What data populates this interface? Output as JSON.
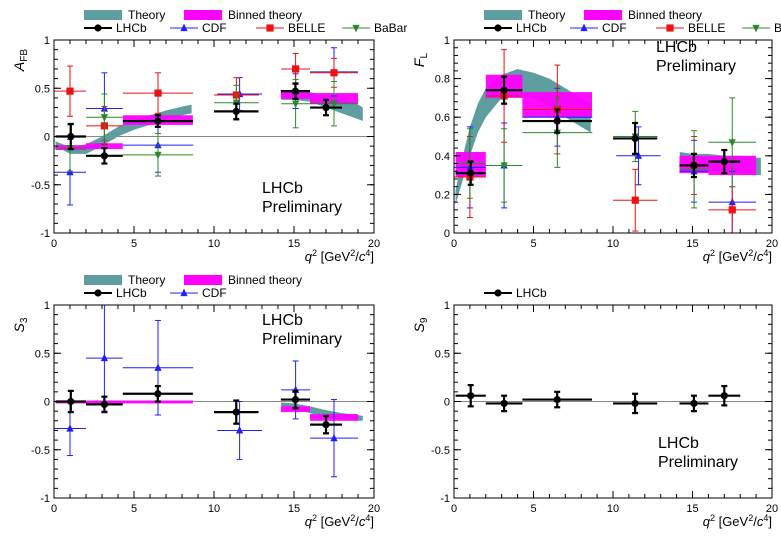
{
  "colors": {
    "theory": "#5f9ea0",
    "binned_theory": "#ff00ff",
    "lhcb": "#000000",
    "cdf": "#1f1fff",
    "belle": "#ee1111",
    "babar": "#2a8a2a"
  },
  "chart_data": [
    {
      "id": "afb",
      "type": "scatter",
      "ylabel_main": "A",
      "ylabel_sub": "FB",
      "xlabel_prefix": "q",
      "xlabel_unit": "[GeV",
      "xlabel_c": "c",
      "xlabel_close": "]",
      "xlim": [
        0,
        20
      ],
      "ylim": [
        -1,
        1
      ],
      "xticks": [
        0,
        5,
        10,
        15,
        20
      ],
      "yticks": [
        -1,
        -0.5,
        0,
        0.5,
        1
      ],
      "ytick_labels": [
        "-1",
        "-0.5",
        "0",
        "0.5",
        "1"
      ],
      "annotation": [
        "LHCb",
        "Preliminary"
      ],
      "legend": {
        "row1": [
          "Theory",
          "Binned theory"
        ],
        "row2": [
          "LHCb",
          "CDF",
          "BELLE",
          "BaBar"
        ]
      },
      "theory_band": {
        "x": [
          0.1,
          1,
          2,
          3,
          4,
          5,
          6,
          7,
          8,
          8.6
        ],
        "lo": [
          -0.1,
          -0.18,
          -0.18,
          -0.1,
          0.0,
          0.07,
          0.12,
          0.18,
          0.22,
          0.24
        ],
        "hi": [
          -0.05,
          -0.11,
          -0.08,
          0.0,
          0.1,
          0.17,
          0.22,
          0.27,
          0.31,
          0.33
        ],
        "x2": [
          14.2,
          15,
          16,
          17,
          18,
          19,
          19.3
        ],
        "lo2": [
          0.38,
          0.38,
          0.36,
          0.3,
          0.24,
          0.18,
          0.16
        ],
        "hi2": [
          0.46,
          0.47,
          0.46,
          0.42,
          0.38,
          0.33,
          0.3
        ]
      },
      "binned": [
        {
          "x": [
            0.1,
            2
          ],
          "y": [
            -0.14,
            -0.09
          ]
        },
        {
          "x": [
            2,
            4.3
          ],
          "y": [
            -0.13,
            -0.07
          ]
        },
        {
          "x": [
            4.3,
            8.68
          ],
          "y": [
            0.12,
            0.22
          ]
        },
        {
          "x": [
            14.18,
            16
          ],
          "y": [
            0.39,
            0.48
          ]
        },
        {
          "x": [
            16,
            19
          ],
          "y": [
            0.34,
            0.45
          ]
        }
      ],
      "series": [
        {
          "name": "LHCb",
          "marker": "circle",
          "points": [
            [
              1.05,
              0.0,
              0.95,
              0.13
            ],
            [
              3.15,
              -0.2,
              1.15,
              0.08
            ],
            [
              6.49,
              0.16,
              2.19,
              0.06
            ],
            [
              11.39,
              0.26,
              1.39,
              0.08
            ],
            [
              15.09,
              0.47,
              0.91,
              0.08
            ],
            [
              17.0,
              0.3,
              1.0,
              0.08
            ]
          ]
        },
        {
          "name": "CDF",
          "marker": "triangle",
          "points": [
            [
              1.0,
              -0.37,
              1.0,
              0.34
            ],
            [
              3.15,
              0.29,
              1.15,
              0.37
            ],
            [
              6.5,
              -0.09,
              2.2,
              0.28
            ],
            [
              11.6,
              0.44,
              1.4,
              0.17
            ],
            [
              15.1,
              0.47,
              0.9,
              0.18
            ],
            [
              17.5,
              0.67,
              1.5,
              0.25
            ]
          ]
        },
        {
          "name": "BELLE",
          "marker": "square",
          "points": [
            [
              1.0,
              0.47,
              1.0,
              0.26
            ],
            [
              3.15,
              0.11,
              1.15,
              0.2
            ],
            [
              6.5,
              0.45,
              2.2,
              0.21
            ],
            [
              11.4,
              0.43,
              1.4,
              0.18
            ],
            [
              15.1,
              0.7,
              0.9,
              0.16
            ],
            [
              17.5,
              0.66,
              1.5,
              0.15
            ]
          ]
        },
        {
          "name": "BaBar",
          "marker": "triangle-down",
          "points": [
            [
              1.0,
              -0.12,
              1.0,
              0.24
            ],
            [
              3.15,
              0.2,
              1.15,
              0.24
            ],
            [
              6.5,
              -0.19,
              2.2,
              0.22
            ],
            [
              11.4,
              0.35,
              1.4,
              0.18
            ],
            [
              15.1,
              0.34,
              0.9,
              0.25
            ],
            [
              17.5,
              0.34,
              1.5,
              0.23
            ]
          ]
        }
      ]
    },
    {
      "id": "fl",
      "type": "scatter",
      "ylabel_main": "F",
      "ylabel_sub": "L",
      "xlabel_prefix": "q",
      "xlabel_unit": "[GeV",
      "xlabel_c": "c",
      "xlabel_close": "]",
      "xlim": [
        0,
        20
      ],
      "ylim": [
        0,
        1
      ],
      "xticks": [
        0,
        5,
        10,
        15,
        20
      ],
      "yticks": [
        0,
        0.2,
        0.4,
        0.6,
        0.8,
        1
      ],
      "ytick_labels": [
        "0",
        "0.2",
        "0.4",
        "0.6",
        "0.8",
        "1"
      ],
      "annotation": [
        "LHCb",
        "Preliminary"
      ],
      "legend": {
        "row1": [
          "Theory",
          "Binned theory"
        ],
        "row2": [
          "LHCb",
          "CDF",
          "BELLE",
          "BaBar"
        ]
      },
      "theory_band": {
        "x": [
          0.1,
          0.5,
          1,
          1.5,
          2,
          3,
          4,
          5,
          6,
          7,
          8,
          8.6
        ],
        "lo": [
          0.15,
          0.26,
          0.4,
          0.52,
          0.6,
          0.7,
          0.72,
          0.7,
          0.66,
          0.6,
          0.55,
          0.52
        ],
        "hi": [
          0.22,
          0.38,
          0.55,
          0.67,
          0.75,
          0.82,
          0.85,
          0.83,
          0.8,
          0.75,
          0.7,
          0.67
        ],
        "x2": [
          14.2,
          15,
          16,
          17,
          18,
          19,
          19.3
        ],
        "lo2": [
          0.32,
          0.32,
          0.32,
          0.31,
          0.31,
          0.3,
          0.3
        ],
        "hi2": [
          0.42,
          0.41,
          0.41,
          0.4,
          0.4,
          0.39,
          0.39
        ]
      },
      "binned": [
        {
          "x": [
            0.1,
            2
          ],
          "y": [
            0.29,
            0.42
          ]
        },
        {
          "x": [
            2,
            4.3
          ],
          "y": [
            0.7,
            0.82
          ]
        },
        {
          "x": [
            4.3,
            8.68
          ],
          "y": [
            0.6,
            0.73
          ]
        },
        {
          "x": [
            14.18,
            16
          ],
          "y": [
            0.31,
            0.4
          ]
        },
        {
          "x": [
            16,
            19
          ],
          "y": [
            0.3,
            0.4
          ]
        }
      ],
      "series": [
        {
          "name": "LHCb",
          "marker": "circle",
          "points": [
            [
              1.05,
              0.31,
              0.95,
              0.06
            ],
            [
              3.15,
              0.74,
              1.15,
              0.07
            ],
            [
              6.49,
              0.58,
              2.19,
              0.06
            ],
            [
              11.39,
              0.49,
              1.39,
              0.08
            ],
            [
              15.09,
              0.35,
              0.91,
              0.06
            ],
            [
              17.0,
              0.37,
              1.0,
              0.06
            ]
          ]
        },
        {
          "name": "CDF",
          "marker": "triangle",
          "points": [
            [
              1.0,
              0.34,
              1.0,
              0.21
            ],
            [
              3.15,
              0.35,
              1.15,
              0.22
            ],
            [
              6.5,
              0.6,
              2.2,
              0.15
            ],
            [
              11.6,
              0.4,
              1.4,
              0.15
            ],
            [
              15.1,
              0.32,
              0.9,
              0.16
            ],
            [
              17.5,
              0.16,
              1.5,
              0.16
            ]
          ]
        },
        {
          "name": "BELLE",
          "marker": "square",
          "points": [
            [
              1.0,
              0.29,
              1.0,
              0.21
            ],
            [
              3.15,
              0.71,
              1.15,
              0.24
            ],
            [
              6.5,
              0.64,
              2.2,
              0.23
            ],
            [
              11.4,
              0.17,
              1.4,
              0.16
            ],
            [
              15.1,
              0.35,
              0.9,
              0.15
            ],
            [
              17.5,
              0.12,
              1.5,
              0.12
            ]
          ]
        },
        {
          "name": "BaBar",
          "marker": "triangle-down",
          "points": [
            [
              1.0,
              0.36,
              1.0,
              0.18
            ],
            [
              3.15,
              0.35,
              1.15,
              0.19
            ],
            [
              6.5,
              0.52,
              2.2,
              0.18
            ],
            [
              11.4,
              0.5,
              1.4,
              0.13
            ],
            [
              15.1,
              0.33,
              0.9,
              0.2
            ],
            [
              17.5,
              0.47,
              1.5,
              0.23
            ]
          ]
        }
      ]
    },
    {
      "id": "s3",
      "type": "scatter",
      "ylabel_main": "S",
      "ylabel_sub": "3",
      "xlabel_prefix": "q",
      "xlabel_unit": "[GeV",
      "xlabel_c": "c",
      "xlabel_close": "]",
      "xlim": [
        0,
        20
      ],
      "ylim": [
        -1,
        1
      ],
      "xticks": [
        0,
        5,
        10,
        15,
        20
      ],
      "yticks": [
        -1,
        -0.5,
        0,
        0.5,
        1
      ],
      "ytick_labels": [
        "-1",
        "-0.5",
        "0",
        "0.5",
        "1"
      ],
      "annotation": [
        "LHCb",
        "Preliminary"
      ],
      "legend": {
        "row1": [
          "Theory",
          "Binned theory"
        ],
        "row2": [
          "LHCb",
          "CDF"
        ]
      },
      "theory_band": {
        "x": [
          0.1,
          2,
          4,
          6,
          8,
          8.6
        ],
        "lo": [
          -0.01,
          -0.01,
          -0.01,
          -0.01,
          -0.01,
          -0.01
        ],
        "hi": [
          0.01,
          0.01,
          0.01,
          0.01,
          0.01,
          0.01
        ],
        "x2": [
          14.2,
          15,
          16,
          17,
          18,
          19,
          19.3
        ],
        "lo2": [
          -0.05,
          -0.07,
          -0.12,
          -0.17,
          -0.19,
          -0.2,
          -0.2
        ],
        "hi2": [
          -0.01,
          -0.02,
          -0.05,
          -0.09,
          -0.12,
          -0.14,
          -0.15
        ]
      },
      "binned": [
        {
          "x": [
            0.1,
            2
          ],
          "y": [
            -0.02,
            0.01
          ]
        },
        {
          "x": [
            2,
            4.3
          ],
          "y": [
            -0.02,
            0.01
          ]
        },
        {
          "x": [
            4.3,
            8.68
          ],
          "y": [
            -0.02,
            0.01
          ]
        },
        {
          "x": [
            14.18,
            16
          ],
          "y": [
            -0.11,
            -0.05
          ]
        },
        {
          "x": [
            16,
            19
          ],
          "y": [
            -0.2,
            -0.13
          ]
        }
      ],
      "series": [
        {
          "name": "LHCb",
          "marker": "circle",
          "points": [
            [
              1.05,
              0.0,
              0.95,
              0.11
            ],
            [
              3.15,
              -0.03,
              1.15,
              0.08
            ],
            [
              6.49,
              0.08,
              2.19,
              0.08
            ],
            [
              11.39,
              -0.11,
              1.39,
              0.12
            ],
            [
              15.09,
              0.02,
              0.91,
              0.09
            ],
            [
              17.0,
              -0.24,
              1.0,
              0.09
            ]
          ]
        },
        {
          "name": "CDF",
          "marker": "triangle",
          "points": [
            [
              1.0,
              -0.28,
              1.0,
              0.28
            ],
            [
              3.15,
              0.45,
              1.15,
              0.55
            ],
            [
              6.5,
              0.35,
              2.2,
              0.49
            ],
            [
              11.6,
              -0.3,
              1.4,
              0.3
            ],
            [
              15.1,
              0.12,
              0.9,
              0.3
            ],
            [
              17.5,
              -0.38,
              1.5,
              0.4
            ]
          ]
        }
      ]
    },
    {
      "id": "s9",
      "type": "scatter",
      "ylabel_main": "S",
      "ylabel_sub": "9",
      "xlabel_prefix": "q",
      "xlabel_unit": "[GeV",
      "xlabel_c": "c",
      "xlabel_close": "]",
      "xlim": [
        0,
        20
      ],
      "ylim": [
        -1,
        1
      ],
      "xticks": [
        0,
        5,
        10,
        15,
        20
      ],
      "yticks": [
        -1,
        -0.5,
        0,
        0.5,
        1
      ],
      "ytick_labels": [
        "-1",
        "-0.5",
        "0",
        "0.5",
        "1"
      ],
      "annotation": [
        "LHCb",
        "Preliminary"
      ],
      "legend": {
        "row1": [],
        "row2": [
          "LHCb"
        ]
      },
      "theory_band": null,
      "binned": [],
      "series": [
        {
          "name": "LHCb",
          "marker": "circle",
          "points": [
            [
              1.05,
              0.06,
              0.95,
              0.11
            ],
            [
              3.15,
              -0.02,
              1.15,
              0.08
            ],
            [
              6.49,
              0.02,
              2.19,
              0.08
            ],
            [
              11.39,
              -0.02,
              1.39,
              0.1
            ],
            [
              15.09,
              -0.02,
              0.91,
              0.08
            ],
            [
              17.0,
              0.06,
              1.0,
              0.1
            ]
          ]
        }
      ]
    }
  ]
}
